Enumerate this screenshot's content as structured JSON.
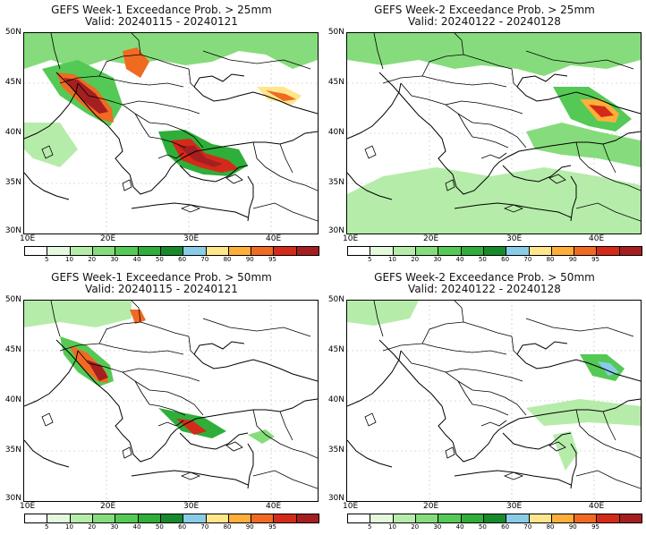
{
  "panels": [
    {
      "line1": "GEFS Week-1 Exceedance Prob. > 25mm",
      "line2": "Valid: 20240115 - 20240121"
    },
    {
      "line1": "GEFS Week-2 Exceedance Prob. > 25mm",
      "line2": "Valid: 20240122 - 20240128"
    },
    {
      "line1": "GEFS Week-1 Exceedance Prob. > 50mm",
      "line2": "Valid: 20240115 - 20240121"
    },
    {
      "line1": "GEFS Week-2 Exceedance Prob. > 50mm",
      "line2": "Valid: 20240122 - 20240128"
    }
  ],
  "axes": {
    "lat_labels": [
      "50N",
      "45N",
      "40N",
      "35N",
      "30N"
    ],
    "lon_labels": [
      "10E",
      "20E",
      "30E",
      "40E"
    ]
  },
  "colorbar": {
    "labels": [
      "5",
      "10",
      "20",
      "30",
      "40",
      "50",
      "60",
      "70",
      "80",
      "90",
      "95"
    ],
    "colors": [
      "#ffffff",
      "#e3f8dc",
      "#b6ecaa",
      "#86dc7c",
      "#55c955",
      "#2fae3a",
      "#178a2c",
      "#88cce8",
      "#ffe68a",
      "#ffae3a",
      "#f06a22",
      "#d42a1a",
      "#a51f21"
    ]
  }
}
